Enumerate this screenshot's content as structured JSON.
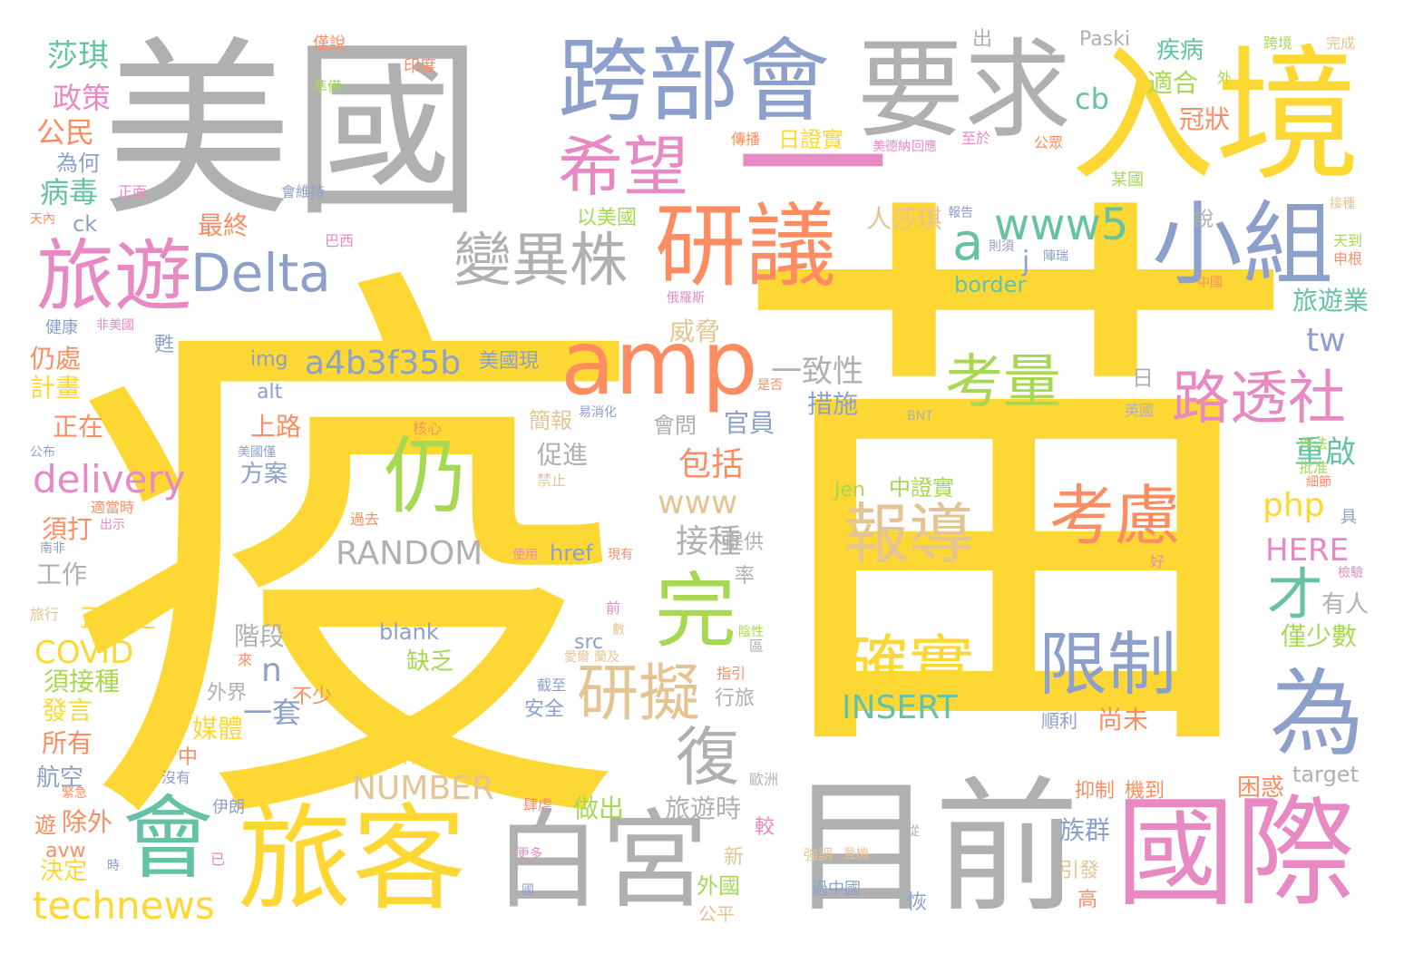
{
  "words": [
    {
      "text": "疫",
      "color": "#fdd835"
    },
    {
      "text": "苗",
      "color": "#fdd835"
    },
    {
      "text": "美國",
      "color": "#b0b0b0"
    },
    {
      "text": "入境",
      "color": "#fdd835"
    },
    {
      "text": "跨部會",
      "color": "#8da0cb"
    },
    {
      "text": "要求",
      "color": "#b0b0b0"
    },
    {
      "text": "一",
      "color": "#e78ac3"
    },
    {
      "text": "目前",
      "color": "#b0b0b0"
    },
    {
      "text": "國際",
      "color": "#e78ac3"
    },
    {
      "text": "旅客",
      "color": "#fdd835"
    },
    {
      "text": "白宮",
      "color": "#b0b0b0"
    },
    {
      "text": "會",
      "color": "#66c2a5"
    },
    {
      "text": "旅遊",
      "color": "#e78ac3"
    },
    {
      "text": "Delta",
      "color": "#8da0cb"
    },
    {
      "text": "希望",
      "color": "#e78ac3"
    },
    {
      "text": "研議",
      "color": "#fc8d62"
    },
    {
      "text": "小組",
      "color": "#8da0cb"
    },
    {
      "text": "amp",
      "color": "#fc8d62"
    },
    {
      "text": "變異株",
      "color": "#b0b0b0"
    },
    {
      "text": "www5",
      "color": "#66c2a5"
    },
    {
      "text": "a",
      "color": "#66c2a5"
    },
    {
      "text": "路透社",
      "color": "#e78ac3"
    },
    {
      "text": "考量",
      "color": "#a6d854"
    },
    {
      "text": "仍",
      "color": "#a6d854"
    },
    {
      "text": "完",
      "color": "#a6d854"
    },
    {
      "text": "為",
      "color": "#8da0cb"
    },
    {
      "text": "報導",
      "color": "#e5c494"
    },
    {
      "text": "考慮",
      "color": "#fc8d62"
    },
    {
      "text": "確實",
      "color": "#fdd835"
    },
    {
      "text": "限制",
      "color": "#8da0cb"
    },
    {
      "text": "研擬",
      "color": "#e5c494"
    },
    {
      "text": "復",
      "color": "#b0b0b0"
    },
    {
      "text": "才",
      "color": "#66c2a5"
    },
    {
      "text": "technews",
      "color": "#fdd835"
    },
    {
      "text": "delivery",
      "color": "#e78ac3"
    },
    {
      "text": "a4b3f35b",
      "color": "#8da0cb"
    },
    {
      "text": "RANDOM",
      "color": "#b0b0b0"
    },
    {
      "text": "NUMBER",
      "color": "#e5c494"
    },
    {
      "text": "INSERT",
      "color": "#66c2a5"
    },
    {
      "text": "www",
      "color": "#e5c494"
    },
    {
      "text": "包括",
      "color": "#fc8d62"
    },
    {
      "text": "一致性",
      "color": "#b0b0b0"
    },
    {
      "text": "接種",
      "color": "#b0b0b0"
    },
    {
      "text": "php",
      "color": "#fdd835"
    },
    {
      "text": "tw",
      "color": "#8da0cb"
    },
    {
      "text": "重啟",
      "color": "#66c2a5"
    },
    {
      "text": "HERE",
      "color": "#e78ac3"
    },
    {
      "text": "COVID",
      "color": "#fdd835"
    },
    {
      "text": "莎琪",
      "color": "#66c2a5"
    },
    {
      "text": "政策",
      "color": "#e78ac3"
    },
    {
      "text": "公民",
      "color": "#fc8d62"
    },
    {
      "text": "為何",
      "color": "#8da0cb"
    },
    {
      "text": "病毒",
      "color": "#66c2a5"
    },
    {
      "text": "最終",
      "color": "#fc8d62"
    },
    {
      "text": "cb",
      "color": "#66c2a5"
    },
    {
      "text": "旅遊業",
      "color": "#66c2a5"
    },
    {
      "text": "冠狀",
      "color": "#fc8d62"
    },
    {
      "text": "疾病",
      "color": "#66c2a5"
    },
    {
      "text": "適合",
      "color": "#a6d854"
    },
    {
      "text": "人莎琪",
      "color": "#e5c494"
    },
    {
      "text": "border",
      "color": "#66c2a5"
    },
    {
      "text": "措施",
      "color": "#8da0cb"
    },
    {
      "text": "官員",
      "color": "#8da0cb"
    },
    {
      "text": "威脅",
      "color": "#e5c494"
    },
    {
      "text": "正在",
      "color": "#fc8d62"
    },
    {
      "text": "上路",
      "color": "#fc8d62"
    },
    {
      "text": "仍處",
      "color": "#fc8d62"
    },
    {
      "text": "計畫",
      "color": "#fdd835"
    },
    {
      "text": "工作",
      "color": "#b0b0b0"
    },
    {
      "text": "正擬定",
      "color": "#fdd835"
    },
    {
      "text": "須打",
      "color": "#fc8d62"
    },
    {
      "text": "須接種",
      "color": "#a6d854"
    },
    {
      "text": "發言",
      "color": "#fdd835"
    },
    {
      "text": "所有",
      "color": "#fc8d62"
    },
    {
      "text": "航空",
      "color": "#8da0cb"
    },
    {
      "text": "除外",
      "color": "#fc8d62"
    },
    {
      "text": "決定",
      "color": "#fdd835"
    },
    {
      "text": "做出",
      "color": "#a6d854"
    },
    {
      "text": "旅遊時",
      "color": "#b0b0b0"
    },
    {
      "text": "階段",
      "color": "#b0b0b0"
    },
    {
      "text": "一套",
      "color": "#8da0cb"
    },
    {
      "text": "媒體",
      "color": "#fdd835"
    },
    {
      "text": "缺乏",
      "color": "#a6d854"
    },
    {
      "text": "方案",
      "color": "#8da0cb"
    },
    {
      "text": "促進",
      "color": "#b0b0b0"
    },
    {
      "text": "簡報",
      "color": "#e5c494"
    },
    {
      "text": "會問",
      "color": "#b0b0b0"
    },
    {
      "text": "尚未",
      "color": "#fc8d62"
    },
    {
      "text": "族群",
      "color": "#8da0cb"
    },
    {
      "text": "僅少數",
      "color": "#a6d854"
    },
    {
      "text": "有人",
      "color": "#b0b0b0"
    },
    {
      "text": "困惑",
      "color": "#fc8d62"
    },
    {
      "text": "target",
      "color": "#b0b0b0"
    },
    {
      "text": "Paski",
      "color": "#b0b0b0"
    },
    {
      "text": "zoneid",
      "color": "#fdd835"
    },
    {
      "text": "blank",
      "color": "#8da0cb"
    },
    {
      "text": "href",
      "color": "#8da0cb"
    },
    {
      "text": "src",
      "color": "#8da0cb"
    },
    {
      "text": "alt",
      "color": "#8da0cb"
    },
    {
      "text": "img",
      "color": "#8da0cb"
    },
    {
      "text": "ck",
      "color": "#8da0cb"
    },
    {
      "text": "avw",
      "color": "#fc8d62"
    },
    {
      "text": "Jen",
      "color": "#a6d854"
    },
    {
      "text": "中證實",
      "color": "#a6d854"
    },
    {
      "text": "日證實",
      "color": "#fdd835"
    },
    {
      "text": "美國現",
      "color": "#8da0cb"
    },
    {
      "text": "以美國",
      "color": "#a6d854"
    },
    {
      "text": "日",
      "color": "#b0b0b0"
    },
    {
      "text": "n",
      "color": "#8da0cb"
    },
    {
      "text": "j",
      "color": "#8da0cb"
    },
    {
      "text": "外界",
      "color": "#b0b0b0"
    },
    {
      "text": "不少",
      "color": "#fc8d62"
    },
    {
      "text": "提供",
      "color": "#b0b0b0"
    },
    {
      "text": "率",
      "color": "#b0b0b0"
    },
    {
      "text": "說",
      "color": "#b0b0b0"
    },
    {
      "text": "行旅",
      "color": "#b0b0b0"
    },
    {
      "text": "安全",
      "color": "#8da0cb"
    },
    {
      "text": "新",
      "color": "#e5c494"
    },
    {
      "text": "外國",
      "color": "#a6d854"
    },
    {
      "text": "公平",
      "color": "#e5c494"
    },
    {
      "text": "引發",
      "color": "#e5c494"
    },
    {
      "text": "高",
      "color": "#fc8d62"
    },
    {
      "text": "恢",
      "color": "#8da0cb"
    },
    {
      "text": "順利",
      "color": "#8da0cb"
    },
    {
      "text": "抑制",
      "color": "#fc8d62"
    },
    {
      "text": "機到",
      "color": "#fc8d62"
    },
    {
      "text": "中",
      "color": "#fc8d62"
    },
    {
      "text": "遊",
      "color": "#fc8d62"
    },
    {
      "text": "較",
      "color": "#e78ac3"
    },
    {
      "text": "出",
      "color": "#b0b0b0"
    },
    {
      "text": "準備",
      "color": "#a6d854"
    },
    {
      "text": "僅說",
      "color": "#fc8d62"
    },
    {
      "text": "印度",
      "color": "#fc8d62"
    },
    {
      "text": "傳播",
      "color": "#fc8d62"
    },
    {
      "text": "美德納",
      "color": "#e78ac3"
    },
    {
      "text": "回應",
      "color": "#e78ac3"
    },
    {
      "text": "至於",
      "color": "#e78ac3"
    },
    {
      "text": "公眾",
      "color": "#fc8d62"
    },
    {
      "text": "跨境",
      "color": "#a6d854"
    },
    {
      "text": "完成",
      "color": "#e5c494"
    },
    {
      "text": "外",
      "color": "#a6d854"
    },
    {
      "text": "某國",
      "color": "#a6d854"
    },
    {
      "text": "報告",
      "color": "#8da0cb"
    },
    {
      "text": "接種",
      "color": "#e5c494"
    },
    {
      "text": "天到",
      "color": "#a6d854"
    },
    {
      "text": "申根",
      "color": "#fc8d62"
    },
    {
      "text": "中國",
      "color": "#fc8d62"
    },
    {
      "text": "則須",
      "color": "#8da0cb"
    },
    {
      "text": "陣瑞",
      "color": "#8da0cb"
    },
    {
      "text": "巴西",
      "color": "#e78ac3"
    },
    {
      "text": "會維持",
      "color": "#8da0cb"
    },
    {
      "text": "正面",
      "color": "#e78ac3"
    },
    {
      "text": "天內",
      "color": "#fc8d62"
    },
    {
      "text": "健康",
      "color": "#8da0cb"
    },
    {
      "text": "非美國",
      "color": "#e78ac3"
    },
    {
      "text": "甦",
      "color": "#8da0cb"
    },
    {
      "text": "俄羅斯",
      "color": "#e78ac3"
    },
    {
      "text": "是否",
      "color": "#fc8d62"
    },
    {
      "text": "BNT",
      "color": "#b0b0b0"
    },
    {
      "text": "英國",
      "color": "#b0b0b0"
    },
    {
      "text": "核心",
      "color": "#fc8d62"
    },
    {
      "text": "易消化",
      "color": "#8da0cb"
    },
    {
      "text": "作法",
      "color": "#a6d854"
    },
    {
      "text": "批准",
      "color": "#a6d854"
    },
    {
      "text": "細節",
      "color": "#fc8d62"
    },
    {
      "text": "具",
      "color": "#8da0cb"
    },
    {
      "text": "好",
      "color": "#e78ac3"
    },
    {
      "text": "檢驗",
      "color": "#e78ac3"
    },
    {
      "text": "公布",
      "color": "#8da0cb"
    },
    {
      "text": "美國僅",
      "color": "#8da0cb"
    },
    {
      "text": "禁止",
      "color": "#e5c494"
    },
    {
      "text": "過去",
      "color": "#fc8d62"
    },
    {
      "text": "使用",
      "color": "#e78ac3"
    },
    {
      "text": "現有",
      "color": "#fc8d62"
    },
    {
      "text": "前",
      "color": "#e78ac3"
    },
    {
      "text": "數",
      "color": "#e5c494"
    },
    {
      "text": "陰性",
      "color": "#a6d854"
    },
    {
      "text": "區",
      "color": "#b0b0b0"
    },
    {
      "text": "蘭及",
      "color": "#e5c494"
    },
    {
      "text": "愛爾",
      "color": "#e5c494"
    },
    {
      "text": "指引",
      "color": "#fc8d62"
    },
    {
      "text": "截至",
      "color": "#8da0cb"
    },
    {
      "text": "旅行",
      "color": "#e5c494"
    },
    {
      "text": "來",
      "color": "#fc8d62"
    },
    {
      "text": "適當時",
      "color": "#fc8d62"
    },
    {
      "text": "出示",
      "color": "#e78ac3"
    },
    {
      "text": "南非",
      "color": "#8da0cb"
    },
    {
      "text": "緊急",
      "color": "#fc8d62"
    },
    {
      "text": "沒有",
      "color": "#8da0cb"
    },
    {
      "text": "伊朗",
      "color": "#8da0cb"
    },
    {
      "text": "時",
      "color": "#8da0cb"
    },
    {
      "text": "已",
      "color": "#e78ac3"
    },
    {
      "text": "Pfizer",
      "color": "#fdd835"
    },
    {
      "text": "歐洲",
      "color": "#b0b0b0"
    },
    {
      "text": "肆虐",
      "color": "#fc8d62"
    },
    {
      "text": "更多",
      "color": "#e78ac3"
    },
    {
      "text": "國",
      "color": "#8da0cb"
    },
    {
      "text": "強調",
      "color": "#e5c494"
    },
    {
      "text": "登機",
      "color": "#e5c494"
    },
    {
      "text": "從",
      "color": "#b0b0b0"
    },
    {
      "text": "過中國",
      "color": "#8da0cb"
    }
  ]
}
